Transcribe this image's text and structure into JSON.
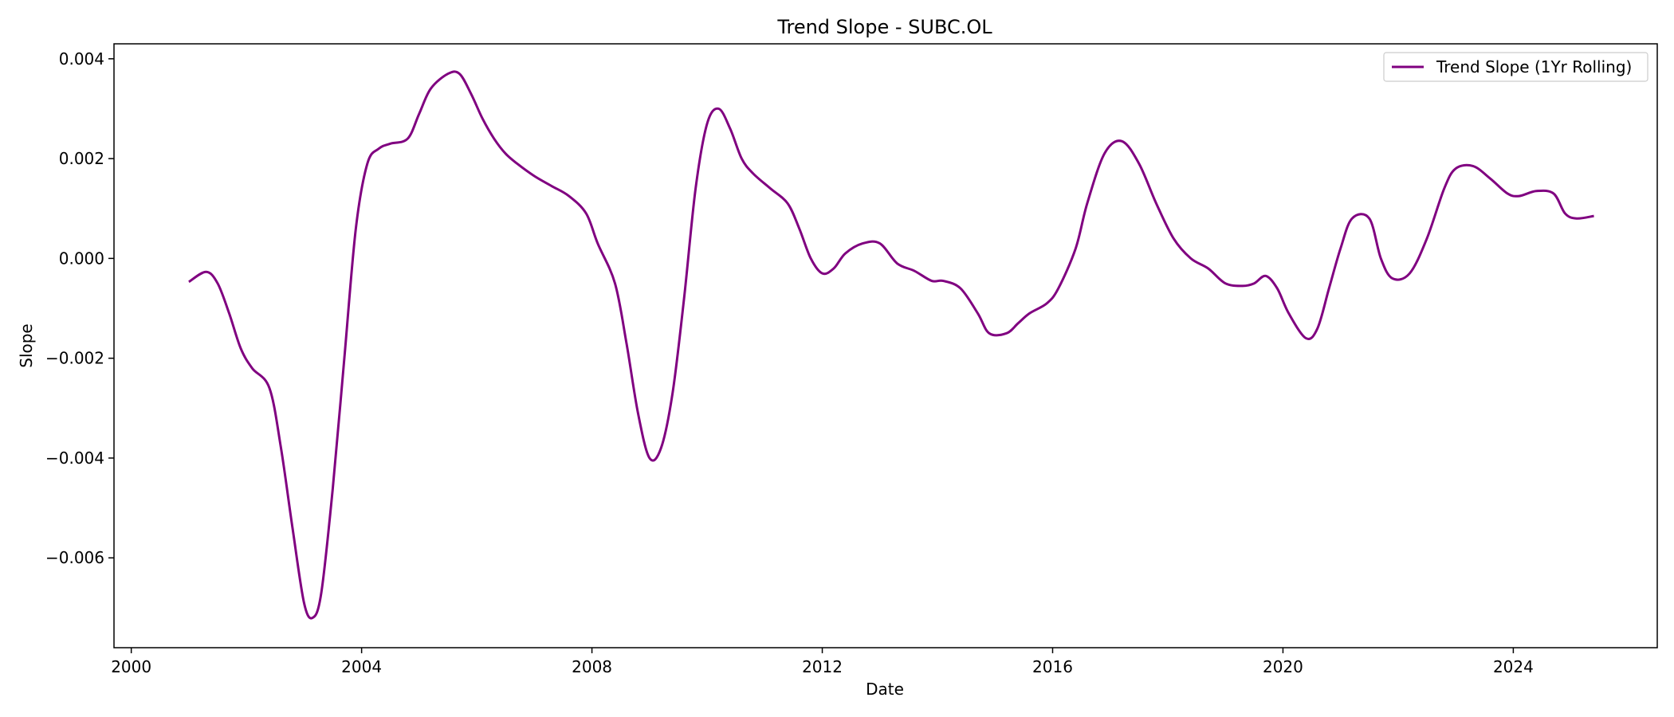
{
  "chart_data": {
    "type": "line",
    "title": "Trend Slope - SUBC.OL",
    "xlabel": "Date",
    "ylabel": "Slope",
    "xlim": [
      1999.7,
      2026.5
    ],
    "ylim": [
      -0.0078,
      0.0043
    ],
    "x_ticks": [
      {
        "value": 2000,
        "label": "2000"
      },
      {
        "value": 2004,
        "label": "2004"
      },
      {
        "value": 2008,
        "label": "2008"
      },
      {
        "value": 2012,
        "label": "2012"
      },
      {
        "value": 2016,
        "label": "2016"
      },
      {
        "value": 2020,
        "label": "2020"
      },
      {
        "value": 2024,
        "label": "2024"
      }
    ],
    "y_ticks": [
      {
        "value": 0.004,
        "label": "0.004"
      },
      {
        "value": 0.002,
        "label": "0.002"
      },
      {
        "value": 0.0,
        "label": "0.000"
      },
      {
        "value": -0.002,
        "label": "−0.002"
      },
      {
        "value": -0.004,
        "label": "−0.004"
      },
      {
        "value": -0.006,
        "label": "−0.006"
      }
    ],
    "grid": false,
    "legend_position": "top-right",
    "series": [
      {
        "name": "Trend Slope (1Yr Rolling)",
        "color": "#800080",
        "points": [
          [
            2001.0,
            -0.00047
          ],
          [
            2001.3,
            -0.00027
          ],
          [
            2001.5,
            -0.0005
          ],
          [
            2001.7,
            -0.0011
          ],
          [
            2001.9,
            -0.0018
          ],
          [
            2002.1,
            -0.0022
          ],
          [
            2002.4,
            -0.0026
          ],
          [
            2002.6,
            -0.0038
          ],
          [
            2002.8,
            -0.0054
          ],
          [
            2003.0,
            -0.0069
          ],
          [
            2003.15,
            -0.0072
          ],
          [
            2003.3,
            -0.0067
          ],
          [
            2003.5,
            -0.0046
          ],
          [
            2003.7,
            -0.002
          ],
          [
            2003.9,
            0.0006
          ],
          [
            2004.1,
            0.0019
          ],
          [
            2004.3,
            0.0022
          ],
          [
            2004.5,
            0.0023
          ],
          [
            2004.8,
            0.0024
          ],
          [
            2005.0,
            0.0029
          ],
          [
            2005.2,
            0.0034
          ],
          [
            2005.5,
            0.0037
          ],
          [
            2005.7,
            0.0037
          ],
          [
            2005.9,
            0.0033
          ],
          [
            2006.1,
            0.0028
          ],
          [
            2006.3,
            0.0024
          ],
          [
            2006.5,
            0.0021
          ],
          [
            2006.7,
            0.0019
          ],
          [
            2007.0,
            0.00165
          ],
          [
            2007.3,
            0.00145
          ],
          [
            2007.6,
            0.00125
          ],
          [
            2007.9,
            0.0009
          ],
          [
            2008.1,
            0.0003
          ],
          [
            2008.4,
            -0.0005
          ],
          [
            2008.6,
            -0.0017
          ],
          [
            2008.8,
            -0.0031
          ],
          [
            2009.0,
            -0.004
          ],
          [
            2009.2,
            -0.0038
          ],
          [
            2009.4,
            -0.0027
          ],
          [
            2009.6,
            -0.0008
          ],
          [
            2009.8,
            0.0014
          ],
          [
            2010.0,
            0.0027
          ],
          [
            2010.2,
            0.003
          ],
          [
            2010.4,
            0.0026
          ],
          [
            2010.6,
            0.002
          ],
          [
            2010.8,
            0.0017
          ],
          [
            2011.1,
            0.0014
          ],
          [
            2011.4,
            0.0011
          ],
          [
            2011.6,
            0.0006
          ],
          [
            2011.8,
            0.0
          ],
          [
            2012.0,
            -0.0003
          ],
          [
            2012.2,
            -0.0002
          ],
          [
            2012.4,
            0.0001
          ],
          [
            2012.7,
            0.0003
          ],
          [
            2013.0,
            0.0003
          ],
          [
            2013.3,
            -0.0001
          ],
          [
            2013.6,
            -0.00025
          ],
          [
            2013.9,
            -0.00045
          ],
          [
            2014.1,
            -0.00045
          ],
          [
            2014.4,
            -0.0006
          ],
          [
            2014.7,
            -0.0011
          ],
          [
            2014.9,
            -0.0015
          ],
          [
            2015.2,
            -0.0015
          ],
          [
            2015.4,
            -0.0013
          ],
          [
            2015.6,
            -0.0011
          ],
          [
            2015.9,
            -0.0009
          ],
          [
            2016.1,
            -0.0006
          ],
          [
            2016.4,
            0.0002
          ],
          [
            2016.6,
            0.0011
          ],
          [
            2016.9,
            0.0021
          ],
          [
            2017.2,
            0.00235
          ],
          [
            2017.5,
            0.0019
          ],
          [
            2017.8,
            0.0011
          ],
          [
            2018.1,
            0.0004
          ],
          [
            2018.4,
            0.0
          ],
          [
            2018.7,
            -0.0002
          ],
          [
            2019.0,
            -0.0005
          ],
          [
            2019.3,
            -0.00055
          ],
          [
            2019.5,
            -0.0005
          ],
          [
            2019.7,
            -0.00035
          ],
          [
            2019.9,
            -0.0006
          ],
          [
            2020.1,
            -0.0011
          ],
          [
            2020.4,
            -0.0016
          ],
          [
            2020.6,
            -0.0014
          ],
          [
            2020.8,
            -0.0006
          ],
          [
            2021.0,
            0.0002
          ],
          [
            2021.2,
            0.0008
          ],
          [
            2021.5,
            0.0008
          ],
          [
            2021.7,
            0.0
          ],
          [
            2021.9,
            -0.0004
          ],
          [
            2022.2,
            -0.0003
          ],
          [
            2022.5,
            0.0004
          ],
          [
            2022.8,
            0.0014
          ],
          [
            2023.0,
            0.0018
          ],
          [
            2023.3,
            0.00185
          ],
          [
            2023.6,
            0.0016
          ],
          [
            2023.9,
            0.0013
          ],
          [
            2024.1,
            0.00125
          ],
          [
            2024.4,
            0.00135
          ],
          [
            2024.7,
            0.0013
          ],
          [
            2024.9,
            0.0009
          ],
          [
            2025.1,
            0.0008
          ],
          [
            2025.4,
            0.00085
          ]
        ]
      }
    ]
  }
}
